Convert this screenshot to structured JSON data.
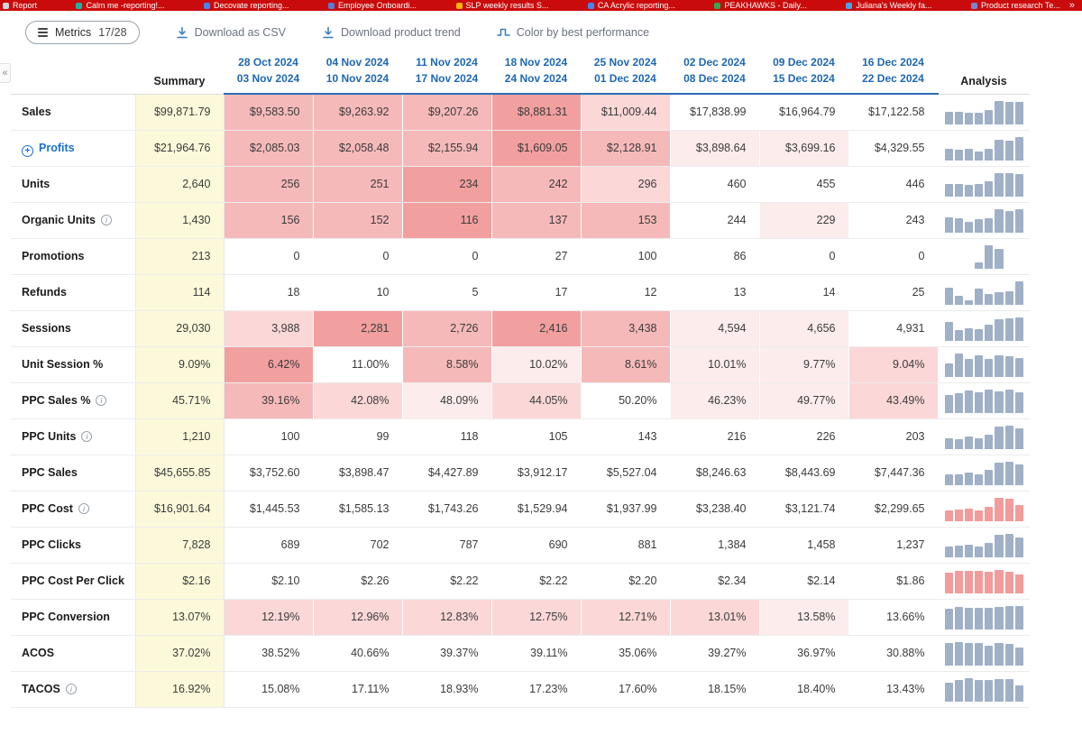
{
  "colors": {
    "bookmarks_bar_bg": "#ca0b0b",
    "header_blue": "#1e68b2",
    "profits_blue": "#1a6fd4",
    "toolbar_icon_blue": "#3779c2",
    "summary_bg": "#fcf9da",
    "heat_palette": [
      "#ffffff",
      "#fdecec",
      "#fbd7d7",
      "#f6b9b9",
      "#f29f9f"
    ],
    "spark": {
      "blue": "#9fb0c7",
      "red": "#f29b9b"
    }
  },
  "bookmarks": {
    "overflow_glyph": "»",
    "items": [
      {
        "label": "Report",
        "icon_color": "#cfd8dc"
      },
      {
        "label": "Calm me -reporting!...",
        "icon_color": "#18b5a3"
      },
      {
        "label": "Decovate reporting...",
        "icon_color": "#4285f4"
      },
      {
        "label": "Employee Onboardi...",
        "icon_color": "#5b7bd5"
      },
      {
        "label": "SLP weekly results S...",
        "icon_color": "#f4b400"
      },
      {
        "label": "CA Acrylic reporting...",
        "icon_color": "#4285f4"
      },
      {
        "label": "PEAKHAWKS - Daily...",
        "icon_color": "#34a853"
      },
      {
        "label": "Juliana's Weekly fa...",
        "icon_color": "#4aa3e8"
      },
      {
        "label": "Product research Te...",
        "icon_color": "#7986cb"
      }
    ]
  },
  "toolbar": {
    "metrics_label": "Metrics",
    "metrics_count": "17/28",
    "download_csv": "Download as CSV",
    "download_trend": "Download product trend",
    "color_by": "Color by best performance"
  },
  "table": {
    "summary_header": "Summary",
    "analysis_header": "Analysis",
    "week_headers": [
      [
        "28 Oct 2024",
        "03 Nov 2024"
      ],
      [
        "04 Nov 2024",
        "10 Nov 2024"
      ],
      [
        "11 Nov 2024",
        "17 Nov 2024"
      ],
      [
        "18 Nov 2024",
        "24 Nov 2024"
      ],
      [
        "25 Nov 2024",
        "01 Dec 2024"
      ],
      [
        "02 Dec 2024",
        "08 Dec 2024"
      ],
      [
        "09 Dec 2024",
        "15 Dec 2024"
      ],
      [
        "16 Dec 2024",
        "22 Dec 2024"
      ]
    ],
    "rows": [
      {
        "label": "Sales",
        "info": false,
        "expandable": false,
        "summary": "$99,871.79",
        "cells": [
          "$9,583.50",
          "$9,263.92",
          "$9,207.26",
          "$8,881.31",
          "$11,009.44",
          "$17,838.99",
          "$16,964.79",
          "$17,122.58"
        ],
        "heat": [
          3,
          3,
          3,
          4,
          2,
          0,
          0,
          0
        ],
        "spark": [
          9583.5,
          9263.92,
          9207.26,
          8881.31,
          11009.44,
          17838.99,
          16964.79,
          17122.58
        ],
        "spark_color": "blue"
      },
      {
        "label": "Profits",
        "info": false,
        "expandable": true,
        "summary": "$21,964.76",
        "cells": [
          "$2,085.03",
          "$2,058.48",
          "$2,155.94",
          "$1,609.05",
          "$2,128.91",
          "$3,898.64",
          "$3,699.16",
          "$4,329.55"
        ],
        "heat": [
          3,
          3,
          3,
          4,
          3,
          1,
          1,
          0
        ],
        "spark": [
          2085.03,
          2058.48,
          2155.94,
          1609.05,
          2128.91,
          3898.64,
          3699.16,
          4329.55
        ],
        "spark_color": "blue"
      },
      {
        "label": "Units",
        "info": false,
        "expandable": false,
        "summary": "2,640",
        "cells": [
          "256",
          "251",
          "234",
          "242",
          "296",
          "460",
          "455",
          "446"
        ],
        "heat": [
          3,
          3,
          4,
          3,
          2,
          0,
          0,
          0
        ],
        "spark": [
          256,
          251,
          234,
          242,
          296,
          460,
          455,
          446
        ],
        "spark_color": "blue"
      },
      {
        "label": "Organic Units",
        "info": true,
        "expandable": false,
        "summary": "1,430",
        "cells": [
          "156",
          "152",
          "116",
          "137",
          "153",
          "244",
          "229",
          "243"
        ],
        "heat": [
          3,
          3,
          4,
          3,
          3,
          0,
          1,
          0
        ],
        "spark": [
          156,
          152,
          116,
          137,
          153,
          244,
          229,
          243
        ],
        "spark_color": "blue"
      },
      {
        "label": "Promotions",
        "info": false,
        "expandable": false,
        "summary": "213",
        "cells": [
          "0",
          "0",
          "0",
          "27",
          "100",
          "86",
          "0",
          "0"
        ],
        "heat": [
          0,
          0,
          0,
          0,
          0,
          0,
          0,
          0
        ],
        "spark": [
          0,
          0,
          0,
          27,
          100,
          86,
          0,
          0
        ],
        "spark_color": "blue"
      },
      {
        "label": "Refunds",
        "info": false,
        "expandable": false,
        "summary": "114",
        "cells": [
          "18",
          "10",
          "5",
          "17",
          "12",
          "13",
          "14",
          "25"
        ],
        "heat": [
          0,
          0,
          0,
          0,
          0,
          0,
          0,
          0
        ],
        "spark": [
          18,
          10,
          5,
          17,
          12,
          13,
          14,
          25
        ],
        "spark_color": "blue"
      },
      {
        "label": "Sessions",
        "info": false,
        "expandable": false,
        "summary": "29,030",
        "cells": [
          "3,988",
          "2,281",
          "2,726",
          "2,416",
          "3,438",
          "4,594",
          "4,656",
          "4,931"
        ],
        "heat": [
          2,
          4,
          3,
          4,
          3,
          1,
          1,
          0
        ],
        "spark": [
          3988,
          2281,
          2726,
          2416,
          3438,
          4594,
          4656,
          4931
        ],
        "spark_color": "blue"
      },
      {
        "label": "Unit Session %",
        "info": false,
        "expandable": false,
        "summary": "9.09%",
        "cells": [
          "6.42%",
          "11.00%",
          "8.58%",
          "10.02%",
          "8.61%",
          "10.01%",
          "9.77%",
          "9.04%"
        ],
        "heat": [
          4,
          0,
          3,
          1,
          3,
          1,
          1,
          2
        ],
        "spark": [
          6.42,
          11.0,
          8.58,
          10.02,
          8.61,
          10.01,
          9.77,
          9.04
        ],
        "spark_color": "blue"
      },
      {
        "label": "PPC Sales %",
        "info": true,
        "expandable": false,
        "summary": "45.71%",
        "cells": [
          "39.16%",
          "42.08%",
          "48.09%",
          "44.05%",
          "50.20%",
          "46.23%",
          "49.77%",
          "43.49%"
        ],
        "heat": [
          3,
          2,
          1,
          2,
          0,
          1,
          1,
          2
        ],
        "spark": [
          39.16,
          42.08,
          48.09,
          44.05,
          50.2,
          46.23,
          49.77,
          43.49
        ],
        "spark_color": "blue"
      },
      {
        "label": "PPC Units",
        "info": true,
        "expandable": false,
        "summary": "1,210",
        "cells": [
          "100",
          "99",
          "118",
          "105",
          "143",
          "216",
          "226",
          "203"
        ],
        "heat": [
          0,
          0,
          0,
          0,
          0,
          0,
          0,
          0
        ],
        "spark": [
          100,
          99,
          118,
          105,
          143,
          216,
          226,
          203
        ],
        "spark_color": "blue"
      },
      {
        "label": "PPC Sales",
        "info": false,
        "expandable": false,
        "summary": "$45,655.85",
        "cells": [
          "$3,752.60",
          "$3,898.47",
          "$4,427.89",
          "$3,912.17",
          "$5,527.04",
          "$8,246.63",
          "$8,443.69",
          "$7,447.36"
        ],
        "heat": [
          0,
          0,
          0,
          0,
          0,
          0,
          0,
          0
        ],
        "spark": [
          3752.6,
          3898.47,
          4427.89,
          3912.17,
          5527.04,
          8246.63,
          8443.69,
          7447.36
        ],
        "spark_color": "blue"
      },
      {
        "label": "PPC Cost",
        "info": true,
        "expandable": false,
        "summary": "$16,901.64",
        "cells": [
          "$1,445.53",
          "$1,585.13",
          "$1,743.26",
          "$1,529.94",
          "$1,937.99",
          "$3,238.40",
          "$3,121.74",
          "$2,299.65"
        ],
        "heat": [
          0,
          0,
          0,
          0,
          0,
          0,
          0,
          0
        ],
        "spark": [
          1445.53,
          1585.13,
          1743.26,
          1529.94,
          1937.99,
          3238.4,
          3121.74,
          2299.65
        ],
        "spark_color": "red"
      },
      {
        "label": "PPC Clicks",
        "info": false,
        "expandable": false,
        "summary": "7,828",
        "cells": [
          "689",
          "702",
          "787",
          "690",
          "881",
          "1,384",
          "1,458",
          "1,237"
        ],
        "heat": [
          0,
          0,
          0,
          0,
          0,
          0,
          0,
          0
        ],
        "spark": [
          689,
          702,
          787,
          690,
          881,
          1384,
          1458,
          1237
        ],
        "spark_color": "blue"
      },
      {
        "label": "PPC Cost Per Click",
        "info": false,
        "expandable": false,
        "summary": "$2.16",
        "cells": [
          "$2.10",
          "$2.26",
          "$2.22",
          "$2.22",
          "$2.20",
          "$2.34",
          "$2.14",
          "$1.86"
        ],
        "heat": [
          0,
          0,
          0,
          0,
          0,
          0,
          0,
          0
        ],
        "spark": [
          2.1,
          2.26,
          2.22,
          2.22,
          2.2,
          2.34,
          2.14,
          1.86
        ],
        "spark_color": "red"
      },
      {
        "label": "PPC Conversion",
        "info": false,
        "expandable": false,
        "summary": "13.07%",
        "cells": [
          "12.19%",
          "12.96%",
          "12.83%",
          "12.75%",
          "12.71%",
          "13.01%",
          "13.58%",
          "13.66%"
        ],
        "heat": [
          2,
          2,
          2,
          2,
          2,
          2,
          1,
          0
        ],
        "spark": [
          12.19,
          12.96,
          12.83,
          12.75,
          12.71,
          13.01,
          13.58,
          13.66
        ],
        "spark_color": "blue"
      },
      {
        "label": "ACOS",
        "info": false,
        "expandable": false,
        "summary": "37.02%",
        "cells": [
          "38.52%",
          "40.66%",
          "39.37%",
          "39.11%",
          "35.06%",
          "39.27%",
          "36.97%",
          "30.88%"
        ],
        "heat": [
          0,
          0,
          0,
          0,
          0,
          0,
          0,
          0
        ],
        "spark": [
          38.52,
          40.66,
          39.37,
          39.11,
          35.06,
          39.27,
          36.97,
          30.88
        ],
        "spark_color": "blue"
      },
      {
        "label": "TACOS",
        "info": true,
        "expandable": false,
        "summary": "16.92%",
        "cells": [
          "15.08%",
          "17.11%",
          "18.93%",
          "17.23%",
          "17.60%",
          "18.15%",
          "18.40%",
          "13.43%"
        ],
        "heat": [
          0,
          0,
          0,
          0,
          0,
          0,
          0,
          0
        ],
        "spark": [
          15.08,
          17.11,
          18.93,
          17.23,
          17.6,
          18.15,
          18.4,
          13.43
        ],
        "spark_color": "blue"
      }
    ]
  }
}
